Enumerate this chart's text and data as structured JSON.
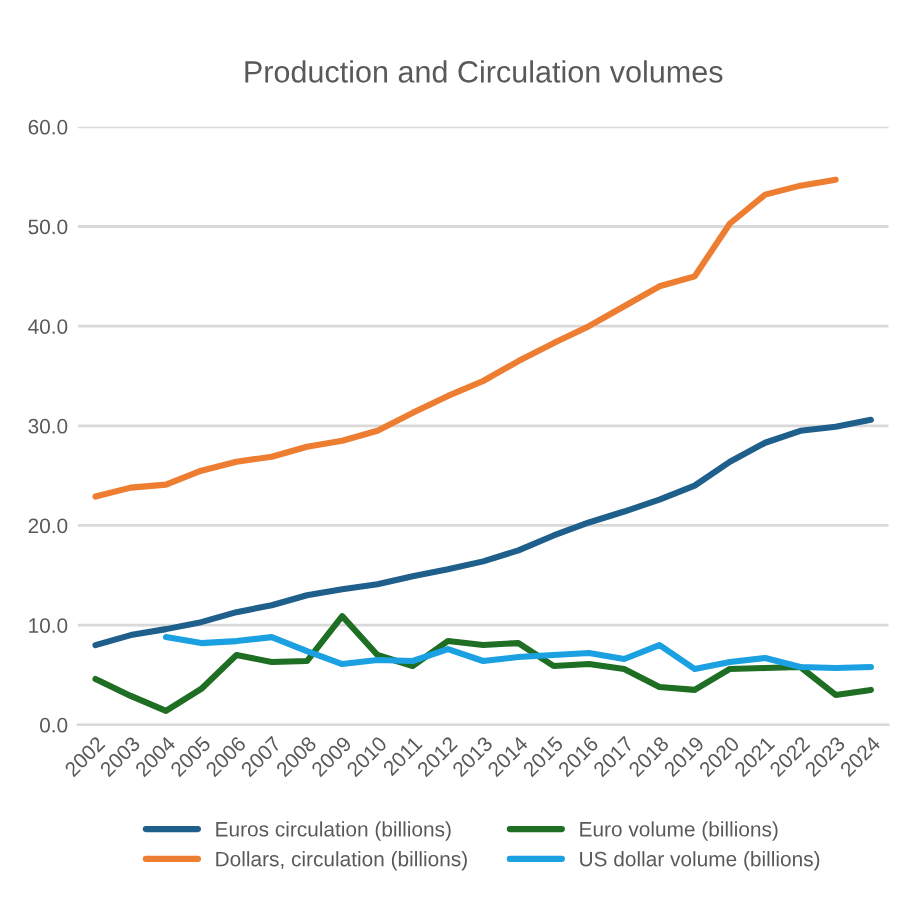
{
  "chart_data": {
    "type": "line",
    "title": "Production and Circulation volumes",
    "categories": [
      "2002",
      "2003",
      "2004",
      "2005",
      "2006",
      "2007",
      "2008",
      "2009",
      "2010",
      "2011",
      "2012",
      "2013",
      "2014",
      "2015",
      "2016",
      "2017",
      "2018",
      "2019",
      "2020",
      "2021",
      "2022",
      "2023",
      "2024"
    ],
    "series": [
      {
        "name": "Euros circulation (billions)",
        "color": "#1f5f8b",
        "values": [
          8.0,
          9.0,
          9.6,
          10.3,
          11.3,
          12.0,
          13.0,
          13.6,
          14.1,
          14.9,
          15.6,
          16.4,
          17.5,
          19.0,
          20.3,
          21.4,
          22.6,
          24.0,
          26.4,
          28.3,
          29.5,
          29.9,
          30.6
        ]
      },
      {
        "name": "Dollars, circulation (billions)",
        "color": "#ed7d31",
        "values": [
          22.9,
          23.8,
          24.1,
          25.5,
          26.4,
          26.9,
          27.9,
          28.5,
          29.5,
          31.3,
          33.0,
          34.5,
          36.5,
          38.3,
          40.0,
          42.0,
          44.0,
          45.0,
          50.3,
          53.2,
          54.1,
          54.7,
          null
        ]
      },
      {
        "name": "Euro volume (billions)",
        "color": "#1e6e23",
        "values": [
          4.6,
          2.9,
          1.4,
          3.6,
          7.0,
          6.3,
          6.4,
          10.9,
          7.0,
          5.9,
          8.4,
          8.0,
          8.2,
          5.9,
          6.1,
          5.6,
          3.8,
          3.5,
          5.6,
          5.7,
          5.8,
          3.0,
          3.5
        ]
      },
      {
        "name": "US dollar volume (billions)",
        "color": "#1ba1e2",
        "values": [
          null,
          null,
          8.8,
          8.2,
          8.4,
          8.8,
          7.4,
          6.1,
          6.5,
          6.4,
          7.6,
          6.4,
          6.8,
          7.0,
          7.2,
          6.6,
          8.0,
          5.6,
          6.3,
          6.7,
          5.8,
          5.7,
          5.8
        ]
      }
    ],
    "ylim": [
      0,
      60
    ],
    "yticks": [
      {
        "value": 0,
        "label": "0.0"
      },
      {
        "value": 10,
        "label": "10.0"
      },
      {
        "value": 20,
        "label": "20.0"
      },
      {
        "value": 30,
        "label": "30.0"
      },
      {
        "value": 40,
        "label": "40.0"
      },
      {
        "value": 50,
        "label": "50.0"
      },
      {
        "value": 60,
        "label": "60.0"
      }
    ],
    "grid": "y",
    "legend": "bottom",
    "marker": "none",
    "line_style": "solid"
  }
}
